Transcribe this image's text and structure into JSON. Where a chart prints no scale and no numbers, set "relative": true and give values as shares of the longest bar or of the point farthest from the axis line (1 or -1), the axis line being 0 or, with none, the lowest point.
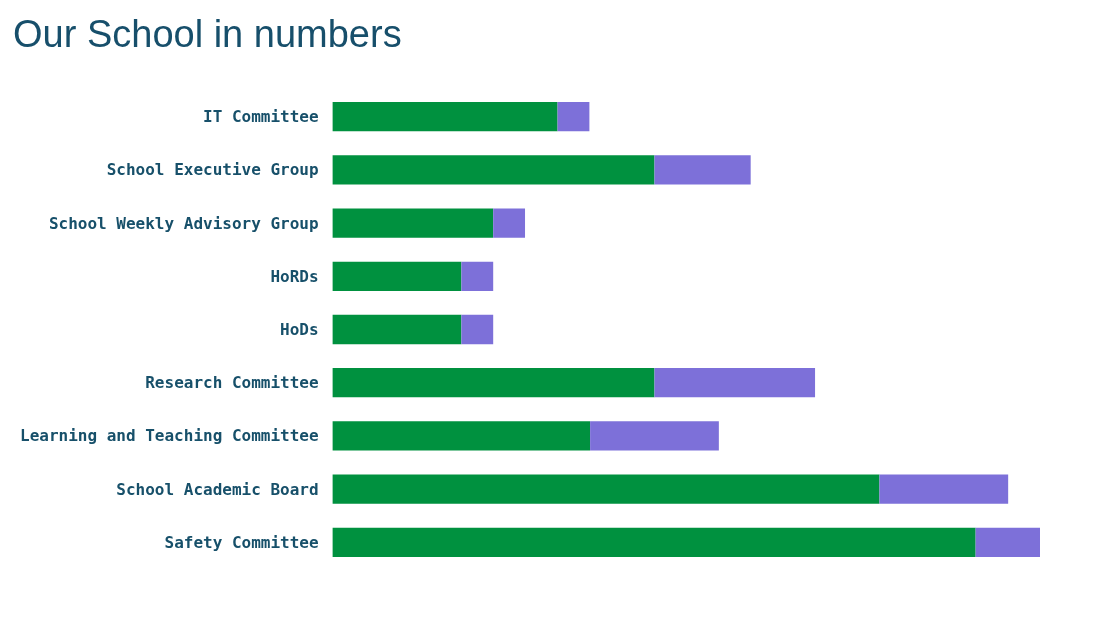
{
  "chart_data": {
    "type": "bar",
    "title": "Our School in numbers",
    "orientation": "horizontal",
    "stacked": true,
    "relative": true,
    "categories": [
      "IT Committee",
      "School Executive Group",
      "School Weekly Advisory Group",
      "HoRDs",
      "HoDs",
      "Research Committee",
      "Learning and Teaching Committee",
      "School Academic Board",
      "Safety Committee"
    ],
    "series": [
      {
        "color": "#00913f",
        "values": [
          0.318,
          0.455,
          0.227,
          0.182,
          0.182,
          0.455,
          0.364,
          0.773,
          0.909
        ]
      },
      {
        "color": "#7d70d9",
        "values": [
          0.045,
          0.136,
          0.045,
          0.045,
          0.045,
          0.227,
          0.182,
          0.182,
          0.091
        ]
      }
    ]
  }
}
